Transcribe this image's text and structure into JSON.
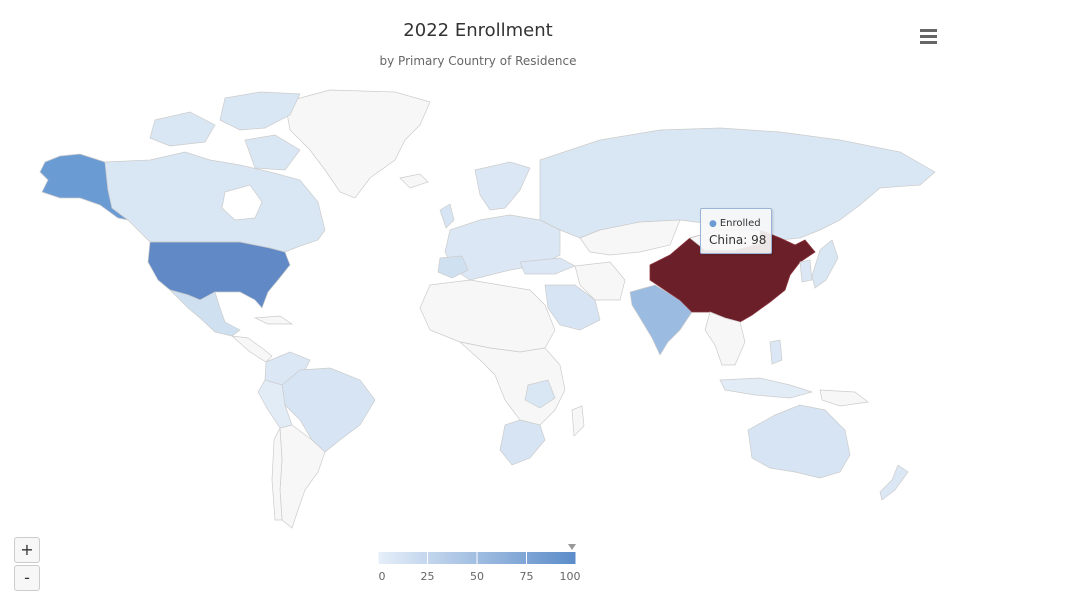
{
  "chart_data": {
    "type": "choropleth-map",
    "title": "2022 Enrollment",
    "subtitle": "by Primary Country of Residence",
    "series_name": "Enrolled",
    "color_axis": {
      "min": 0,
      "max": 100,
      "ticks": [
        0,
        25,
        50,
        75,
        100
      ],
      "min_color": "#e6eff9",
      "max_color": "#5b8cc9",
      "null_color": "#f7f7f7",
      "hover_color": "#6b2029"
    },
    "highlighted": {
      "country": "China",
      "value": 98
    },
    "countries": [
      {
        "name": "China",
        "value": 98
      },
      {
        "name": "United States",
        "value": 72
      },
      {
        "name": "Alaska (United States)",
        "value": 72
      },
      {
        "name": "India",
        "value": 30
      },
      {
        "name": "Canada",
        "value": 18
      },
      {
        "name": "Mexico",
        "value": 12
      },
      {
        "name": "Brazil",
        "value": 10
      },
      {
        "name": "Russia",
        "value": 10
      },
      {
        "name": "Australia",
        "value": 10
      },
      {
        "name": "Greenland",
        "value": null
      },
      {
        "name": "Saudi Arabia",
        "value": 12
      },
      {
        "name": "South Africa",
        "value": 10
      },
      {
        "name": "Colombia",
        "value": 8
      },
      {
        "name": "Indonesia",
        "value": 6
      }
    ]
  },
  "tooltip": {
    "series": "Enrolled",
    "point": "China: 98"
  },
  "ui": {
    "zoom_in": "+",
    "zoom_out": "-"
  },
  "legend_labels": [
    "0",
    "25",
    "50",
    "75",
    "100"
  ]
}
